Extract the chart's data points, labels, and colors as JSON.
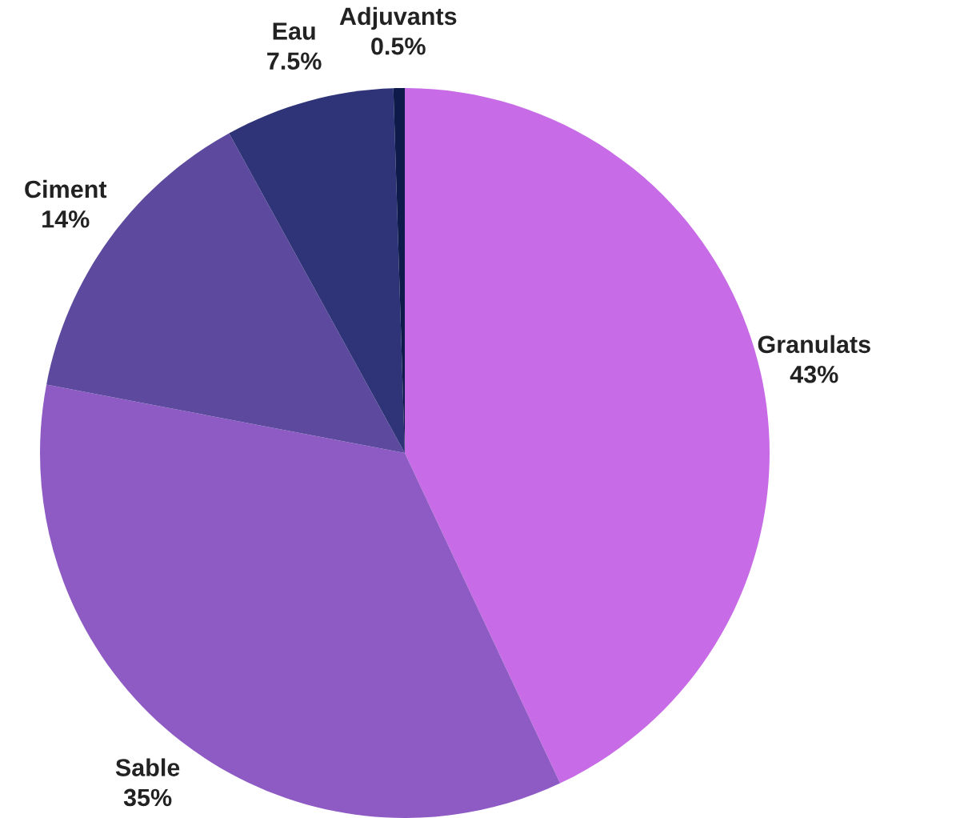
{
  "chart_data": {
    "type": "pie",
    "categories": [
      "Granulats",
      "Sable",
      "Ciment",
      "Eau",
      "Adjuvants"
    ],
    "values": [
      43,
      35,
      14,
      7.5,
      0.5
    ],
    "value_labels": [
      "43%",
      "35%",
      "14%",
      "7.5%",
      "0.5%"
    ],
    "colors": [
      "#c86be6",
      "#8e5bc5",
      "#5d4a9f",
      "#2e3477",
      "#0d1a4a"
    ],
    "legend": false
  }
}
